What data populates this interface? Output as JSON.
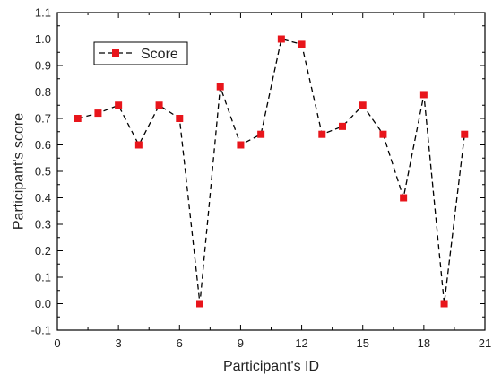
{
  "chart_data": {
    "type": "line",
    "title": "",
    "xlabel": "Participant's ID",
    "ylabel": "Participant's score",
    "xlim": [
      0,
      21
    ],
    "ylim": [
      -0.1,
      1.1
    ],
    "xticks": [
      0,
      3,
      6,
      9,
      12,
      15,
      18,
      21
    ],
    "yticks": [
      -0.1,
      0.0,
      0.1,
      0.2,
      0.3,
      0.4,
      0.5,
      0.6,
      0.7,
      0.8,
      0.9,
      1.0,
      1.1
    ],
    "grid": false,
    "legend": "top-left",
    "series": [
      {
        "name": "Score",
        "color": "#e8151b",
        "line_style": "dashed",
        "marker": "square",
        "x": [
          1,
          2,
          3,
          4,
          5,
          6,
          7,
          8,
          9,
          10,
          11,
          12,
          13,
          14,
          15,
          16,
          17,
          18,
          19,
          20
        ],
        "y": [
          0.7,
          0.72,
          0.75,
          0.6,
          0.75,
          0.7,
          0.0,
          0.82,
          0.6,
          0.64,
          1.0,
          0.98,
          0.64,
          0.67,
          0.75,
          0.64,
          0.4,
          0.79,
          0.0,
          0.64
        ]
      }
    ]
  }
}
